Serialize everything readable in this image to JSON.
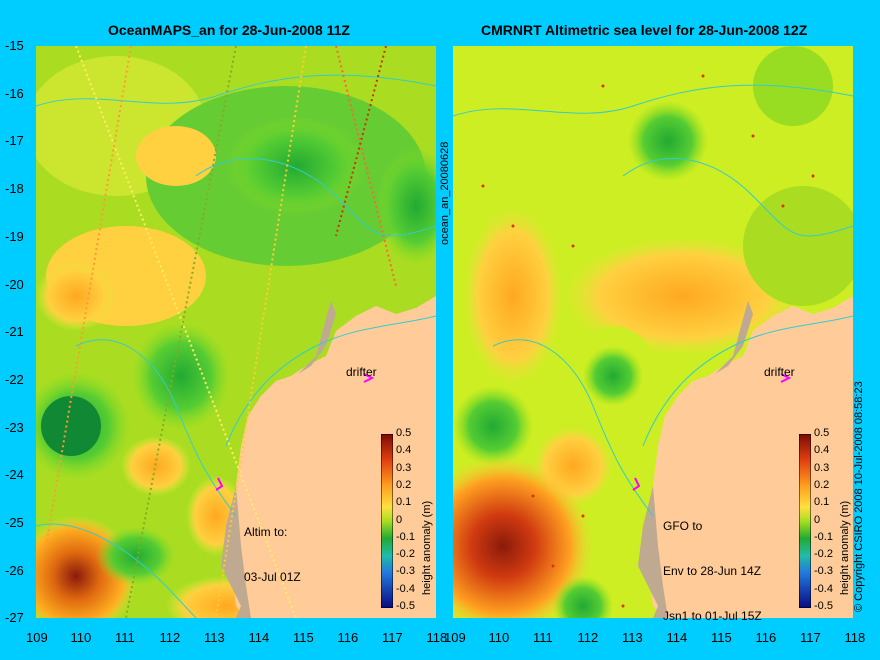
{
  "left_panel": {
    "title": "OceanMAPS_an for 28-Jun-2008 11Z",
    "annotation_lines": [
      "Altim to:",
      "03-Jul 01Z"
    ],
    "drifter_label": "drifter"
  },
  "right_panel": {
    "title": "CMRNRT Altimetric sea level  for 28-Jun-2008 12Z",
    "annotation_lines": [
      "GFO to",
      "Env to 28-Jun 14Z",
      "Jsn1 to 01-Jul 15Z"
    ],
    "drifter_label": "drifter"
  },
  "side_label": "ocean_an_20080628",
  "copyright": "© Copyright CSIRO 2008  10-Jul-2008 08:58:23",
  "colorbar": {
    "label": "height anomaly (m)",
    "ticks": [
      "0.5",
      "0.4",
      "0.3",
      "0.2",
      "0.1",
      "0",
      "-0.1",
      "-0.2",
      "-0.3",
      "-0.4",
      "-0.5"
    ]
  },
  "chart_data": {
    "type": "heatmap",
    "x_ticks": [
      "109",
      "110",
      "111",
      "112",
      "113",
      "114",
      "115",
      "116",
      "117",
      "118"
    ],
    "y_ticks": [
      "-15",
      "-16",
      "-17",
      "-18",
      "-19",
      "-20",
      "-21",
      "-22",
      "-23",
      "-24",
      "-25",
      "-26",
      "-27"
    ],
    "xlim": [
      109,
      118
    ],
    "ylim": [
      -27,
      -15
    ],
    "colors": {
      "land": "#ffcc99",
      "shelf": "#bfa990",
      "contour": "#33cccc",
      "background": "#00cdff",
      "drifter": "#ff00ff"
    }
  }
}
